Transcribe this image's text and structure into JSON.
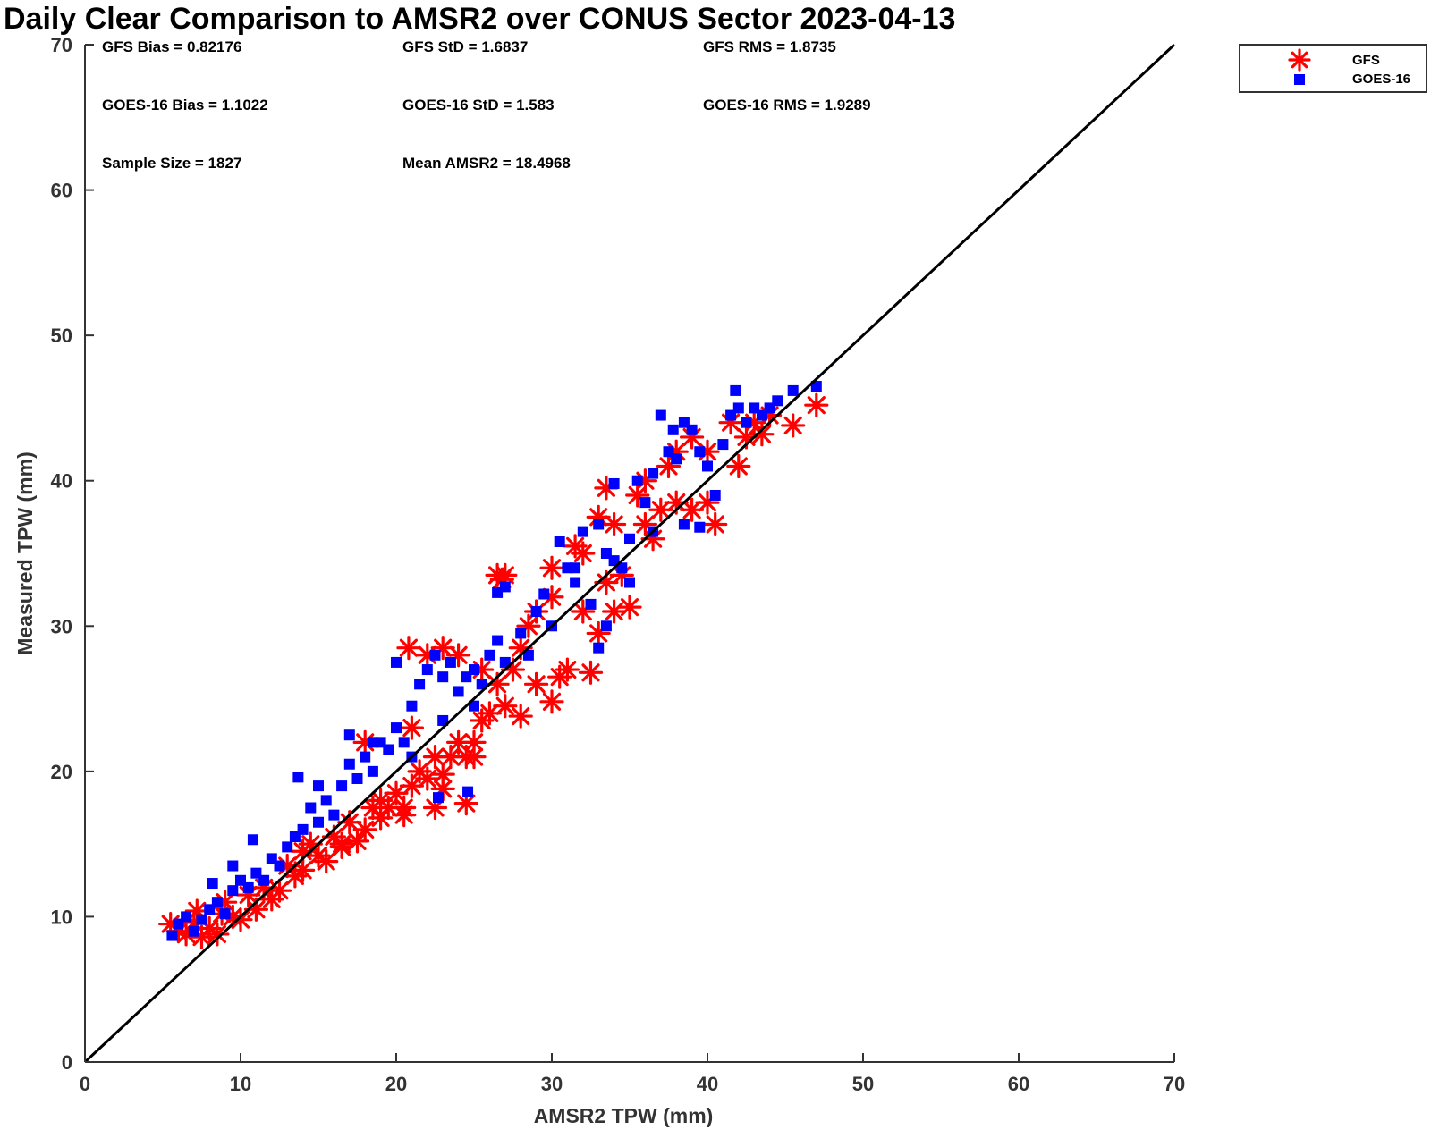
{
  "chart_data": {
    "type": "scatter",
    "title": "Daily Clear Comparison to AMSR2 over CONUS Sector 2023-04-13",
    "xlabel": "AMSR2 TPW (mm)",
    "ylabel": "Measured TPW (mm)",
    "xlim": [
      0,
      70
    ],
    "ylim": [
      0,
      70
    ],
    "xticks": [
      0,
      10,
      20,
      30,
      40,
      50,
      60,
      70
    ],
    "yticks": [
      0,
      10,
      20,
      30,
      40,
      50,
      60,
      70
    ],
    "grid": false,
    "legend_position": "outside-top-right",
    "reference_line": {
      "from": [
        0,
        0
      ],
      "to": [
        70,
        70
      ],
      "color": "#000000"
    },
    "annotations": {
      "gfs_bias": "GFS Bias = 0.82176",
      "gfs_std": "GFS StD = 1.6837",
      "gfs_rms": "GFS RMS = 1.8735",
      "goes_bias": "GOES-16 Bias = 1.1022",
      "goes_std": "GOES-16 StD = 1.583",
      "goes_rms": "GOES-16 RMS = 1.9289",
      "sample_size": "Sample Size = 1827",
      "mean_amsr2": "Mean AMSR2 = 18.4968"
    },
    "series": [
      {
        "name": "GFS",
        "marker": "asterisk",
        "color": "#ff0000",
        "points": [
          [
            5.5,
            9.5
          ],
          [
            6.0,
            9.0
          ],
          [
            6.5,
            8.8
          ],
          [
            7.0,
            9.6
          ],
          [
            7.5,
            8.6
          ],
          [
            7.2,
            10.4
          ],
          [
            8.0,
            9.2
          ],
          [
            8.5,
            8.8
          ],
          [
            8.8,
            10.2
          ],
          [
            9.0,
            11.0
          ],
          [
            9.5,
            10.0
          ],
          [
            10.0,
            9.8
          ],
          [
            10.5,
            11.5
          ],
          [
            11.0,
            10.5
          ],
          [
            11.5,
            12.0
          ],
          [
            12.0,
            11.2
          ],
          [
            12.5,
            11.8
          ],
          [
            13.0,
            13.5
          ],
          [
            13.5,
            12.8
          ],
          [
            14.0,
            13.2
          ],
          [
            14.5,
            15.0
          ],
          [
            15.0,
            14.2
          ],
          [
            15.5,
            13.8
          ],
          [
            16.0,
            15.5
          ],
          [
            16.5,
            14.8
          ],
          [
            17.0,
            16.5
          ],
          [
            17.5,
            15.2
          ],
          [
            18.0,
            16.0
          ],
          [
            18.5,
            17.5
          ],
          [
            19.0,
            18.0
          ],
          [
            19.5,
            17.5
          ],
          [
            20.0,
            18.5
          ],
          [
            20.5,
            17.5
          ],
          [
            21.0,
            19.0
          ],
          [
            21.5,
            20.0
          ],
          [
            22.0,
            19.5
          ],
          [
            22.5,
            21.0
          ],
          [
            23.0,
            19.8
          ],
          [
            23.5,
            21.0
          ],
          [
            24.0,
            22.0
          ],
          [
            24.5,
            21.0
          ],
          [
            25.0,
            22.0
          ],
          [
            25.5,
            23.5
          ],
          [
            26.0,
            24.0
          ],
          [
            27.0,
            24.5
          ],
          [
            28.0,
            23.8
          ],
          [
            29.0,
            26.0
          ],
          [
            30.0,
            24.8
          ],
          [
            30.5,
            26.5
          ],
          [
            31.0,
            27.0
          ],
          [
            32.5,
            26.8
          ],
          [
            33.0,
            29.5
          ],
          [
            34.0,
            31.0
          ],
          [
            35.0,
            31.3
          ],
          [
            34.5,
            33.5
          ],
          [
            33.5,
            33.0
          ],
          [
            32.0,
            35.0
          ],
          [
            31.5,
            35.5
          ],
          [
            30.0,
            34.0
          ],
          [
            26.5,
            33.5
          ],
          [
            27.0,
            33.5
          ],
          [
            26.8,
            33.2
          ],
          [
            20.8,
            28.5
          ],
          [
            22.0,
            28.0
          ],
          [
            23.0,
            28.5
          ],
          [
            24.0,
            28.0
          ],
          [
            29.0,
            31.0
          ],
          [
            30.0,
            32.0
          ],
          [
            33.0,
            37.5
          ],
          [
            34.0,
            37.0
          ],
          [
            36.0,
            37.0
          ],
          [
            36.5,
            36.0
          ],
          [
            37.0,
            38.0
          ],
          [
            38.0,
            38.5
          ],
          [
            39.0,
            38.0
          ],
          [
            40.0,
            38.5
          ],
          [
            40.5,
            37.0
          ],
          [
            38.0,
            42.0
          ],
          [
            39.0,
            43.0
          ],
          [
            40.0,
            42.0
          ],
          [
            42.0,
            41.0
          ],
          [
            42.5,
            43.0
          ],
          [
            43.0,
            44.0
          ],
          [
            43.5,
            43.2
          ],
          [
            44.0,
            44.5
          ],
          [
            45.5,
            43.8
          ],
          [
            47.0,
            45.2
          ],
          [
            41.5,
            44.0
          ],
          [
            32.0,
            31.0
          ],
          [
            28.5,
            30.0
          ],
          [
            22.5,
            17.5
          ],
          [
            24.5,
            17.8
          ],
          [
            25.0,
            21.0
          ],
          [
            23.0,
            18.8
          ],
          [
            20.5,
            17.0
          ],
          [
            19.0,
            16.8
          ],
          [
            16.5,
            15.0
          ],
          [
            14.0,
            14.5
          ],
          [
            18.0,
            22.0
          ],
          [
            21.0,
            23.0
          ],
          [
            26.5,
            26.0
          ],
          [
            27.5,
            27.0
          ],
          [
            33.5,
            39.5
          ],
          [
            35.5,
            39.0
          ],
          [
            28.0,
            28.5
          ],
          [
            25.5,
            27.0
          ],
          [
            36.0,
            40.0
          ],
          [
            37.5,
            41.0
          ]
        ]
      },
      {
        "name": "GOES-16",
        "marker": "square",
        "color": "#0000ff",
        "points": [
          [
            5.6,
            8.7
          ],
          [
            6.0,
            9.5
          ],
          [
            6.5,
            10.0
          ],
          [
            7.0,
            9.0
          ],
          [
            7.5,
            9.8
          ],
          [
            8.0,
            10.5
          ],
          [
            8.2,
            12.3
          ],
          [
            8.5,
            11.0
          ],
          [
            9.0,
            10.2
          ],
          [
            9.5,
            11.8
          ],
          [
            10.0,
            12.5
          ],
          [
            10.5,
            12.0
          ],
          [
            10.8,
            15.3
          ],
          [
            11.0,
            13.0
          ],
          [
            11.5,
            12.5
          ],
          [
            12.0,
            14.0
          ],
          [
            12.5,
            13.5
          ],
          [
            13.0,
            14.8
          ],
          [
            13.5,
            15.5
          ],
          [
            14.0,
            16.0
          ],
          [
            14.5,
            17.5
          ],
          [
            15.0,
            16.5
          ],
          [
            15.5,
            18.0
          ],
          [
            16.0,
            17.0
          ],
          [
            16.5,
            19.0
          ],
          [
            17.0,
            20.5
          ],
          [
            17.5,
            19.5
          ],
          [
            18.0,
            21.0
          ],
          [
            18.5,
            20.0
          ],
          [
            19.0,
            22.0
          ],
          [
            19.5,
            21.5
          ],
          [
            20.0,
            23.0
          ],
          [
            20.5,
            22.0
          ],
          [
            21.0,
            24.5
          ],
          [
            21.5,
            26.0
          ],
          [
            22.0,
            27.0
          ],
          [
            22.5,
            28.0
          ],
          [
            23.0,
            26.5
          ],
          [
            23.5,
            27.5
          ],
          [
            24.0,
            25.5
          ],
          [
            24.5,
            26.5
          ],
          [
            25.0,
            27.0
          ],
          [
            25.5,
            26.0
          ],
          [
            26.0,
            28.0
          ],
          [
            26.5,
            29.0
          ],
          [
            27.0,
            27.5
          ],
          [
            28.0,
            29.5
          ],
          [
            29.0,
            31.0
          ],
          [
            30.0,
            30.0
          ],
          [
            30.5,
            35.8
          ],
          [
            31.0,
            34.0
          ],
          [
            31.5,
            33.0
          ],
          [
            32.0,
            36.5
          ],
          [
            33.0,
            37.0
          ],
          [
            33.5,
            35.0
          ],
          [
            34.0,
            34.5
          ],
          [
            35.0,
            33.0
          ],
          [
            35.5,
            40.0
          ],
          [
            36.0,
            38.5
          ],
          [
            36.5,
            40.5
          ],
          [
            37.0,
            44.5
          ],
          [
            37.5,
            42.0
          ],
          [
            38.0,
            41.5
          ],
          [
            38.5,
            44.0
          ],
          [
            39.0,
            43.5
          ],
          [
            39.5,
            42.0
          ],
          [
            40.0,
            41.0
          ],
          [
            40.5,
            39.0
          ],
          [
            41.0,
            42.5
          ],
          [
            41.5,
            44.5
          ],
          [
            41.8,
            46.2
          ],
          [
            42.0,
            45.0
          ],
          [
            42.5,
            44.0
          ],
          [
            43.0,
            45.0
          ],
          [
            43.5,
            44.5
          ],
          [
            44.0,
            45.0
          ],
          [
            44.5,
            45.5
          ],
          [
            45.5,
            46.2
          ],
          [
            47.0,
            46.5
          ],
          [
            37.8,
            43.5
          ],
          [
            26.5,
            32.3
          ],
          [
            27.0,
            32.7
          ],
          [
            29.5,
            32.2
          ],
          [
            32.5,
            31.5
          ],
          [
            33.0,
            28.5
          ],
          [
            34.5,
            34.0
          ],
          [
            35.0,
            36.0
          ],
          [
            36.5,
            36.5
          ],
          [
            38.5,
            37.0
          ],
          [
            39.5,
            36.8
          ],
          [
            22.7,
            18.2
          ],
          [
            24.6,
            18.6
          ],
          [
            13.7,
            19.6
          ],
          [
            20.0,
            27.5
          ],
          [
            25.0,
            24.5
          ],
          [
            28.5,
            28.0
          ],
          [
            17.0,
            22.5
          ],
          [
            18.5,
            22.0
          ],
          [
            15.0,
            19.0
          ],
          [
            9.5,
            13.5
          ],
          [
            21.0,
            21.0
          ],
          [
            23.0,
            23.5
          ],
          [
            34.0,
            39.8
          ],
          [
            33.5,
            30.0
          ],
          [
            31.5,
            34.0
          ]
        ]
      }
    ]
  },
  "legend": {
    "items": [
      {
        "label": "GFS",
        "marker": "asterisk",
        "color": "#ff0000"
      },
      {
        "label": "GOES-16",
        "marker": "square",
        "color": "#0000ff"
      }
    ]
  }
}
